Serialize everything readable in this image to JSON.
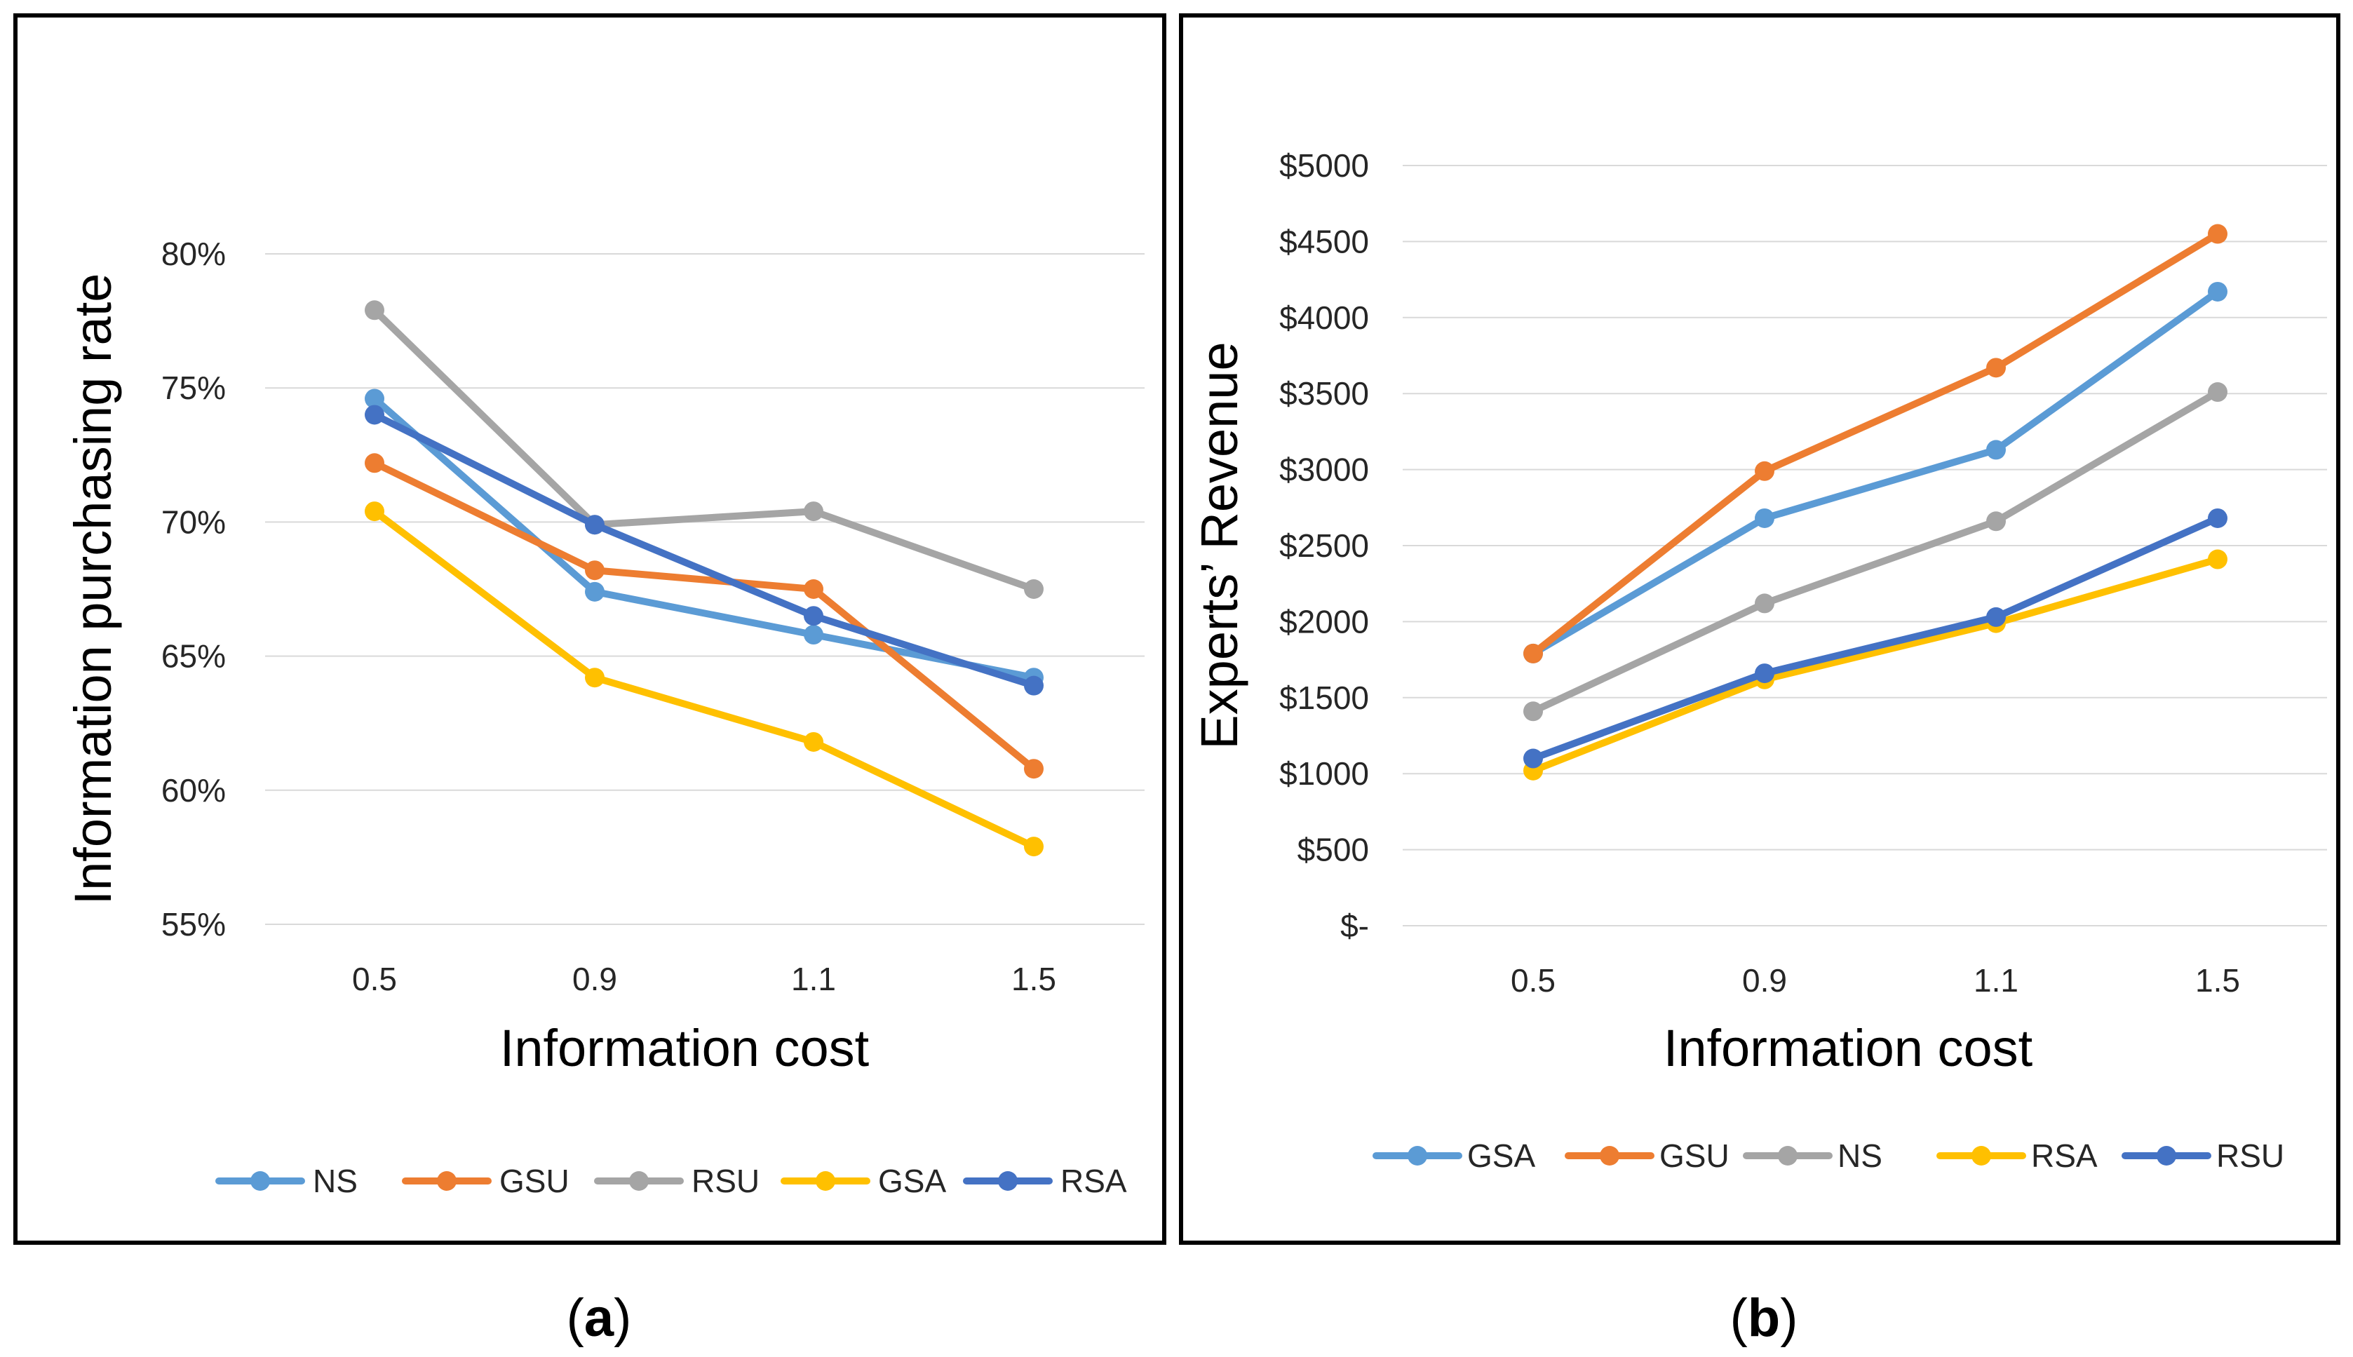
{
  "chart_data": [
    {
      "panel": "a",
      "type": "line",
      "xlabel": "Information cost",
      "ylabel": "Information purchasing rate",
      "categories": [
        "0.5",
        "0.9",
        "1.1",
        "1.5"
      ],
      "ylim": [
        0.55,
        0.8
      ],
      "yticks": [
        0.55,
        0.6,
        0.65,
        0.7,
        0.75,
        0.8
      ],
      "ytick_labels": [
        "55%",
        "60%",
        "65%",
        "70%",
        "75%",
        "80%"
      ],
      "legend_position": "bottom",
      "series": [
        {
          "name": "NS",
          "color": "#5B9BD5",
          "values": [
            0.746,
            0.674,
            0.658,
            0.642
          ]
        },
        {
          "name": "GSU",
          "color": "#ED7D31",
          "values": [
            0.722,
            0.682,
            0.675,
            0.608
          ]
        },
        {
          "name": "RSU",
          "color": "#A5A5A5",
          "values": [
            0.779,
            0.699,
            0.704,
            0.675
          ]
        },
        {
          "name": "GSA",
          "color": "#FFC000",
          "values": [
            0.704,
            0.642,
            0.618,
            0.579
          ]
        },
        {
          "name": "RSA",
          "color": "#4472C4",
          "values": [
            0.74,
            0.699,
            0.665,
            0.639
          ]
        }
      ]
    },
    {
      "panel": "b",
      "type": "line",
      "xlabel": "Information cost",
      "ylabel": "Experts’ Revenue",
      "categories": [
        "0.5",
        "0.9",
        "1.1",
        "1.5"
      ],
      "ylim": [
        0,
        5000
      ],
      "yticks": [
        0,
        500,
        1000,
        1500,
        2000,
        2500,
        3000,
        3500,
        4000,
        4500,
        5000
      ],
      "ytick_labels": [
        "$-",
        "$500",
        "$1000",
        "$1500",
        "$2000",
        "$2500",
        "$3000",
        "$3500",
        "$4000",
        "$4500",
        "$5000"
      ],
      "legend_position": "bottom",
      "series": [
        {
          "name": "GSA",
          "color": "#5B9BD5",
          "values": [
            1790,
            2680,
            3130,
            4170
          ]
        },
        {
          "name": "GSU",
          "color": "#ED7D31",
          "values": [
            1790,
            2990,
            3670,
            4550
          ]
        },
        {
          "name": "NS",
          "color": "#A5A5A5",
          "values": [
            1410,
            2120,
            2660,
            3510
          ]
        },
        {
          "name": "RSA",
          "color": "#FFC000",
          "values": [
            1020,
            1620,
            1990,
            2410
          ]
        },
        {
          "name": "RSU",
          "color": "#4472C4",
          "values": [
            1100,
            1660,
            2030,
            2680
          ]
        }
      ]
    }
  ],
  "panel_labels": [
    "a",
    "b"
  ]
}
